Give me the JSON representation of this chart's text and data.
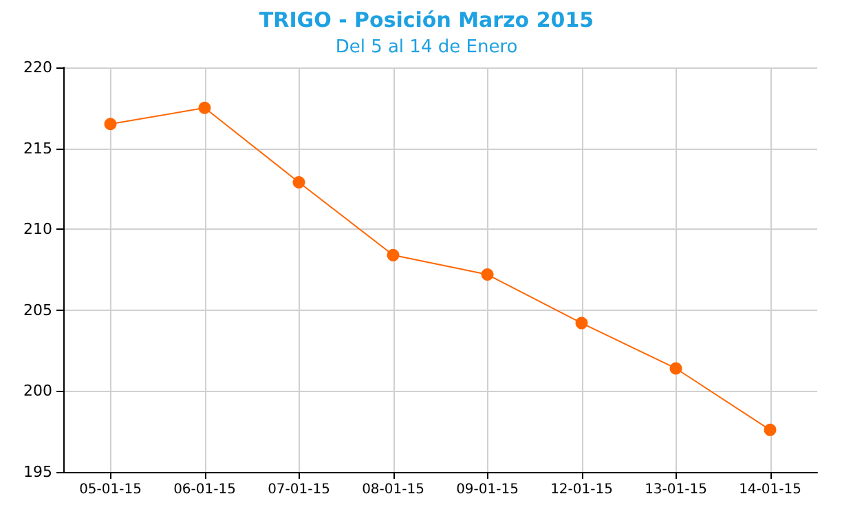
{
  "chart_data": {
    "type": "line",
    "title": "TRIGO - Posición Marzo 2015",
    "subtitle": "Del 5 al 14 de Enero",
    "categories": [
      "05-01-15",
      "06-01-15",
      "07-01-15",
      "08-01-15",
      "09-01-15",
      "12-01-15",
      "13-01-15",
      "14-01-15"
    ],
    "series": [
      {
        "color": "#ff6600",
        "values": [
          216.5,
          217.5,
          212.9,
          208.4,
          207.2,
          204.2,
          201.4,
          197.6
        ]
      }
    ],
    "ylim": [
      195,
      220
    ],
    "yticks": [
      195,
      200,
      205,
      210,
      215,
      220
    ],
    "grid": true,
    "marker": "circle",
    "line_style": "solid"
  }
}
